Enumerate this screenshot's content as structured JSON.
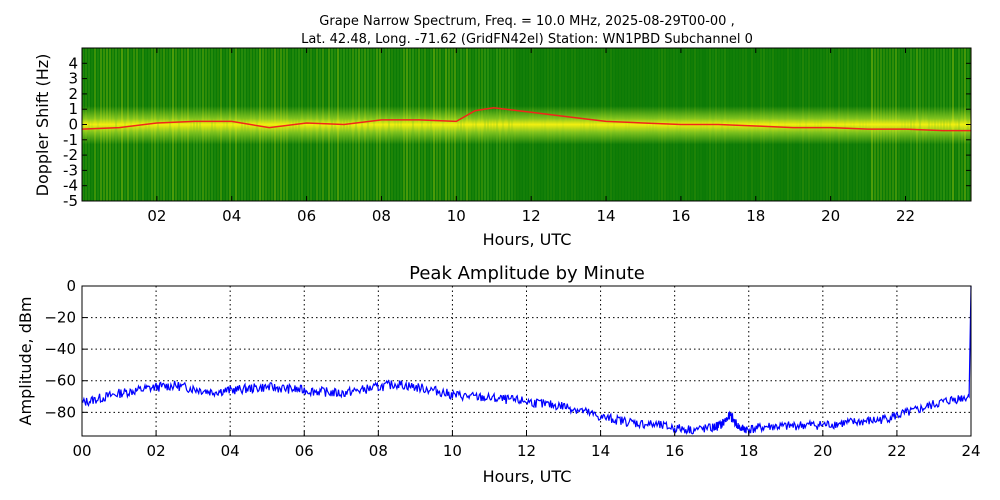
{
  "figure": {
    "title_line1": "Grape Narrow Spectrum, Freq. = 10.0 MHz, 2025-08-29T00-00 ,",
    "title_line2": "Lat.  42.48, Long. -71.62 (GridFN42el) Station: WN1PBD Subchannel 0"
  },
  "chart_data": [
    {
      "type": "heatmap",
      "title": "",
      "xlabel": "Hours, UTC",
      "ylabel": "Doppler Shift (Hz)",
      "xlim": [
        0,
        23.75
      ],
      "ylim": [
        -5,
        5
      ],
      "x_ticks": [
        2,
        4,
        6,
        8,
        10,
        12,
        14,
        16,
        18,
        20,
        22
      ],
      "x_tick_labels": [
        "02",
        "04",
        "06",
        "08",
        "10",
        "12",
        "14",
        "16",
        "18",
        "20",
        "22"
      ],
      "y_ticks": [
        4,
        3,
        2,
        1,
        0,
        -1,
        -2,
        -3,
        -4,
        -5
      ],
      "y_tick_labels": [
        "4",
        "3",
        "2",
        "1",
        "0",
        "-1",
        "-2",
        "-3",
        "-4",
        "-5"
      ],
      "colors": {
        "background": "#0b7a06",
        "mid": "#7fc31f",
        "high": "#f3f010",
        "peak": "#f0261a"
      },
      "doppler_trace": {
        "hours": [
          0,
          1,
          2,
          3,
          4,
          5,
          6,
          7,
          8,
          9,
          10,
          10.5,
          11,
          12,
          13,
          14,
          15,
          16,
          17,
          18,
          19,
          20,
          21,
          22,
          23,
          23.75
        ],
        "shift_hz": [
          -0.3,
          -0.2,
          0.1,
          0.2,
          0.2,
          -0.2,
          0.1,
          0.0,
          0.3,
          0.3,
          0.2,
          0.9,
          1.1,
          0.8,
          0.5,
          0.2,
          0.1,
          0.0,
          0.0,
          -0.1,
          -0.2,
          -0.2,
          -0.3,
          -0.3,
          -0.4,
          -0.4
        ]
      },
      "grid": false
    },
    {
      "type": "line",
      "title": "Peak Amplitude by Minute",
      "xlabel": "Hours, UTC",
      "ylabel": "Amplitude, dBm",
      "xlim": [
        0,
        24
      ],
      "ylim": [
        -95,
        0
      ],
      "x_ticks": [
        0,
        2,
        4,
        6,
        8,
        10,
        12,
        14,
        16,
        18,
        20,
        22,
        24
      ],
      "x_tick_labels": [
        "00",
        "02",
        "04",
        "06",
        "08",
        "10",
        "12",
        "14",
        "16",
        "18",
        "20",
        "22",
        "24"
      ],
      "y_ticks": [
        0,
        -20,
        -40,
        -60,
        -80
      ],
      "y_tick_labels": [
        "0",
        "−20",
        "−40",
        "−60",
        "−80"
      ],
      "grid": true,
      "line_color": "#0000ff",
      "x": [
        0,
        0.5,
        1,
        1.5,
        2,
        2.5,
        3,
        3.5,
        4,
        4.5,
        5,
        5.5,
        6,
        6.5,
        7,
        7.5,
        8,
        8.5,
        9,
        9.5,
        10,
        10.5,
        11,
        11.5,
        12,
        12.5,
        13,
        13.5,
        14,
        14.5,
        15,
        15.5,
        16,
        16.5,
        17,
        17.25,
        17.5,
        17.75,
        18,
        18.5,
        19,
        19.5,
        20,
        20.5,
        21,
        21.5,
        22,
        22.5,
        23,
        23.5,
        23.95,
        24
      ],
      "y": [
        -74,
        -71,
        -68,
        -66,
        -64,
        -63,
        -65,
        -67,
        -66,
        -65,
        -64,
        -65,
        -66,
        -67,
        -68,
        -66,
        -64,
        -62,
        -64,
        -66,
        -69,
        -70,
        -71,
        -72,
        -73,
        -75,
        -76,
        -79,
        -83,
        -85,
        -87,
        -88,
        -90,
        -91,
        -90,
        -88,
        -82,
        -90,
        -91,
        -89,
        -89,
        -88,
        -88,
        -87,
        -86,
        -85,
        -82,
        -79,
        -75,
        -72,
        -70,
        0
      ]
    }
  ]
}
